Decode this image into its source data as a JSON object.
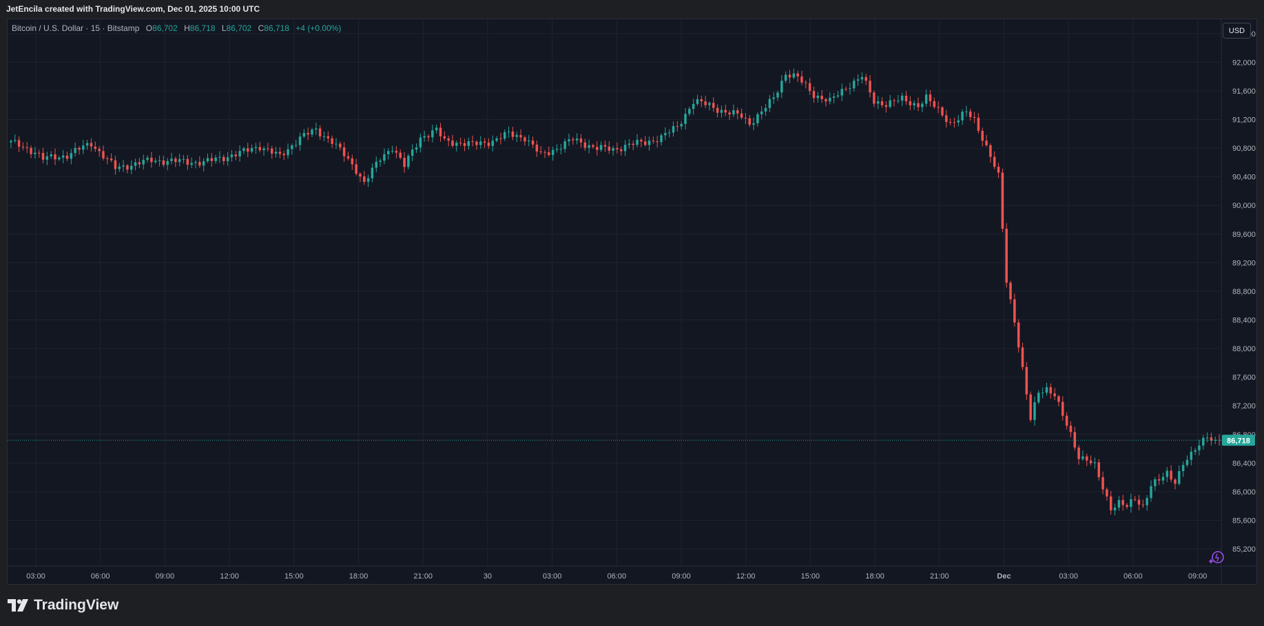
{
  "header": {
    "created_by": "JetEncila created with TradingView.com, Dec 01, 2025 10:00 UTC"
  },
  "legend": {
    "symbol": "Bitcoin / U.S. Dollar · 15 · Bitstamp",
    "o_label": "O",
    "o_value": "86,702",
    "h_label": "H",
    "h_value": "86,718",
    "l_label": "L",
    "l_value": "86,702",
    "c_label": "C",
    "c_value": "86,718",
    "change": "+4 (+0.00%)"
  },
  "currency_button": "USD",
  "footer": {
    "brand": "TradingView"
  },
  "colors": {
    "up": "#26a69a",
    "down": "#ef5350",
    "background": "#131722",
    "grid": "#1f2330",
    "axis_text": "#b2b5be",
    "last_price": "#26a69a"
  },
  "chart_data": {
    "type": "candlestick",
    "interval": "15",
    "y_range": [
      84960,
      92600
    ],
    "y_ticks": [
      85200,
      85600,
      86000,
      86400,
      86800,
      87200,
      87600,
      88000,
      88400,
      88800,
      89200,
      89600,
      90000,
      90400,
      90800,
      91200,
      91600,
      92000,
      92400
    ],
    "y_tick_labels": [
      "85,200",
      "85,600",
      "86,000",
      "86,400",
      "86,800",
      "87,200",
      "87,600",
      "88,000",
      "88,400",
      "88,800",
      "89,200",
      "89,600",
      "90,000",
      "90,400",
      "90,800",
      "91,200",
      "91,600",
      "92,000",
      "92,400"
    ],
    "x_ticks": [
      {
        "label": "03:00",
        "bold": false
      },
      {
        "label": "06:00",
        "bold": false
      },
      {
        "label": "09:00",
        "bold": false
      },
      {
        "label": "12:00",
        "bold": false
      },
      {
        "label": "15:00",
        "bold": false
      },
      {
        "label": "18:00",
        "bold": false
      },
      {
        "label": "21:00",
        "bold": false
      },
      {
        "label": "30",
        "bold": false
      },
      {
        "label": "03:00",
        "bold": false
      },
      {
        "label": "06:00",
        "bold": false
      },
      {
        "label": "09:00",
        "bold": false
      },
      {
        "label": "12:00",
        "bold": false
      },
      {
        "label": "15:00",
        "bold": false
      },
      {
        "label": "18:00",
        "bold": false
      },
      {
        "label": "21:00",
        "bold": false
      },
      {
        "label": "Dec",
        "bold": true
      },
      {
        "label": "03:00",
        "bold": false
      },
      {
        "label": "06:00",
        "bold": false
      },
      {
        "label": "09:00",
        "bold": false
      }
    ],
    "last_price": 86718,
    "last_price_label": "86,718",
    "anchor_points": [
      [
        0,
        90880
      ],
      [
        6,
        90750
      ],
      [
        8,
        90650
      ],
      [
        14,
        90700
      ],
      [
        20,
        90870
      ],
      [
        22,
        90750
      ],
      [
        26,
        90520
      ],
      [
        35,
        90630
      ],
      [
        48,
        90600
      ],
      [
        57,
        90730
      ],
      [
        62,
        90830
      ],
      [
        67,
        90680
      ],
      [
        72,
        90950
      ],
      [
        76,
        91050
      ],
      [
        80,
        90900
      ],
      [
        86,
        90500
      ],
      [
        88,
        90320
      ],
      [
        92,
        90650
      ],
      [
        95,
        90820
      ],
      [
        98,
        90550
      ],
      [
        102,
        90950
      ],
      [
        106,
        91050
      ],
      [
        108,
        90900
      ],
      [
        115,
        90850
      ],
      [
        120,
        90900
      ],
      [
        124,
        91000
      ],
      [
        128,
        90950
      ],
      [
        132,
        90700
      ],
      [
        136,
        90800
      ],
      [
        140,
        90920
      ],
      [
        146,
        90800
      ],
      [
        150,
        90780
      ],
      [
        154,
        90850
      ],
      [
        158,
        90880
      ],
      [
        162,
        90950
      ],
      [
        166,
        91100
      ],
      [
        170,
        91450
      ],
      [
        174,
        91400
      ],
      [
        178,
        91300
      ],
      [
        182,
        91250
      ],
      [
        184,
        91150
      ],
      [
        187,
        91300
      ],
      [
        190,
        91500
      ],
      [
        193,
        91850
      ],
      [
        196,
        91780
      ],
      [
        200,
        91550
      ],
      [
        204,
        91450
      ],
      [
        208,
        91650
      ],
      [
        212,
        91800
      ],
      [
        215,
        91450
      ],
      [
        218,
        91420
      ],
      [
        222,
        91480
      ],
      [
        226,
        91400
      ],
      [
        228,
        91500
      ],
      [
        230,
        91380
      ],
      [
        232,
        91280
      ],
      [
        234,
        91150
      ],
      [
        236,
        91200
      ],
      [
        238,
        91300
      ],
      [
        240,
        91200
      ],
      [
        242,
        90950
      ],
      [
        244,
        90680
      ],
      [
        246,
        90400
      ],
      [
        248,
        88950
      ],
      [
        250,
        88400
      ],
      [
        252,
        87700
      ],
      [
        254,
        87000
      ],
      [
        256,
        87400
      ],
      [
        258,
        87450
      ],
      [
        260,
        87350
      ],
      [
        262,
        87050
      ],
      [
        264,
        86800
      ],
      [
        266,
        86500
      ],
      [
        268,
        86450
      ],
      [
        270,
        86350
      ],
      [
        272,
        86050
      ],
      [
        274,
        85780
      ],
      [
        276,
        85850
      ],
      [
        278,
        85780
      ],
      [
        280,
        85900
      ],
      [
        282,
        85800
      ],
      [
        284,
        86100
      ],
      [
        286,
        86150
      ],
      [
        288,
        86250
      ],
      [
        290,
        86150
      ],
      [
        292,
        86400
      ],
      [
        294,
        86500
      ],
      [
        296,
        86650
      ],
      [
        298,
        86800
      ],
      [
        300,
        86700
      ],
      [
        301,
        86718
      ]
    ]
  }
}
